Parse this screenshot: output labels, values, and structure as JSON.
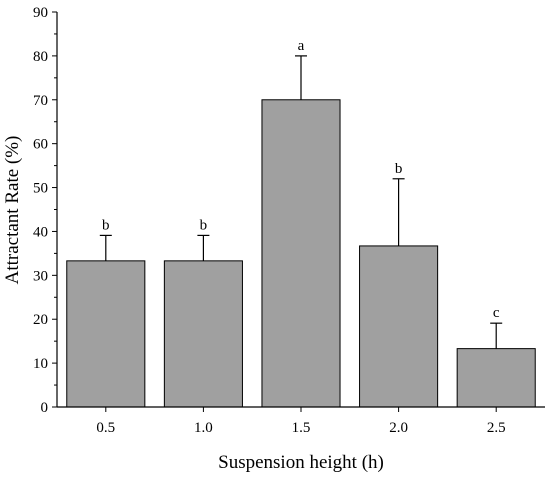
{
  "chart_data": {
    "type": "bar",
    "xlabel": "Suspension height (h)",
    "ylabel": "Attractant Rate (%)",
    "categories": [
      "0.5",
      "1.0",
      "1.5",
      "2.0",
      "2.5"
    ],
    "values": [
      33.3,
      33.3,
      70,
      36.7,
      13.3
    ],
    "errors": [
      5.8,
      5.8,
      10,
      15.3,
      5.8
    ],
    "significance": [
      "b",
      "b",
      "a",
      "b",
      "c"
    ],
    "ylim": [
      0,
      90
    ],
    "yticks": [
      0,
      10,
      20,
      30,
      40,
      50,
      60,
      70,
      80,
      90
    ],
    "bar_color": "#a0a0a0",
    "edge_color": "#000000",
    "grid": false
  }
}
